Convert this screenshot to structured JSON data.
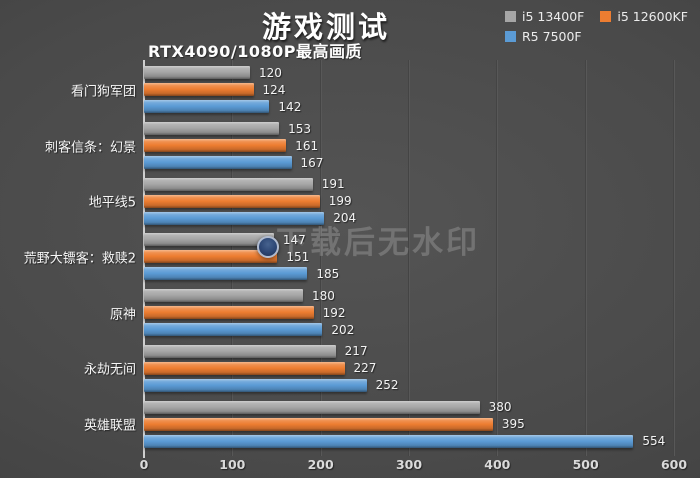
{
  "title": "游戏测试",
  "subtitle": "RTX4090/1080P最高画质",
  "watermark": "下载后无水印",
  "colors": {
    "background": "#474747",
    "series_gray": "#a6a6a6",
    "series_orange": "#ed7d31",
    "series_blue": "#5b9bd5",
    "axis_line": "#cfcfcf",
    "text": "#f3f3f3"
  },
  "chart_data": {
    "type": "bar",
    "orientation": "horizontal",
    "title": "游戏测试",
    "subtitle": "RTX4090/1080P最高画质",
    "categories": [
      "看门狗军团",
      "刺客信条：幻景",
      "地平线5",
      "荒野大镖客：救赎2",
      "原神",
      "永劫无间",
      "英雄联盟"
    ],
    "series": [
      {
        "name": "i5 13400F",
        "color": "#a6a6a6",
        "values": [
          120,
          153,
          191,
          147,
          180,
          217,
          380
        ]
      },
      {
        "name": "i5 12600KF",
        "color": "#ed7d31",
        "values": [
          124,
          161,
          199,
          151,
          192,
          227,
          395
        ]
      },
      {
        "name": "R5 7500F",
        "color": "#5b9bd5",
        "values": [
          142,
          167,
          204,
          185,
          202,
          252,
          554
        ]
      }
    ],
    "xlabel": "",
    "ylabel": "",
    "xlim": [
      0,
      600
    ],
    "xticks": [
      0,
      100,
      200,
      300,
      400,
      500,
      600
    ],
    "grid": true,
    "legend_position": "top-right",
    "data_labels": true
  }
}
